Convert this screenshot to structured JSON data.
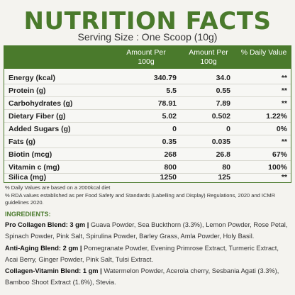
{
  "title": "NUTRITION FACTS",
  "serving": "Serving Size : One Scoop (10g)",
  "table": {
    "headers": [
      "Amount Per 100g",
      "Amount Per 100g",
      "% Daily Value"
    ],
    "rows": [
      {
        "label": "Energy (kcal)",
        "per100g": "340.79",
        "perScoop": "34.0",
        "dv": "**"
      },
      {
        "label": "Protein (g)",
        "per100g": "5.5",
        "perScoop": "0.55",
        "dv": "**"
      },
      {
        "label": "Carbohydrates (g)",
        "per100g": "78.91",
        "perScoop": "7.89",
        "dv": "**"
      },
      {
        "label": "Dietary Fiber (g)",
        "per100g": "5.02",
        "perScoop": "0.502",
        "dv": "1.22%"
      },
      {
        "label": "Added Sugars (g)",
        "per100g": "0",
        "perScoop": "0",
        "dv": "0%"
      },
      {
        "label": "Fats (g)",
        "per100g": "0.35",
        "perScoop": "0.035",
        "dv": "**"
      },
      {
        "label": "Biotin (mcg)",
        "per100g": "268",
        "perScoop": "26.8",
        "dv": "67%"
      },
      {
        "label": "Vitamin c (mg)",
        "per100g": "800",
        "perScoop": "80",
        "dv": "100%"
      },
      {
        "label": "Silica (mg)",
        "per100g": "1250",
        "perScoop": "125",
        "dv": "**"
      }
    ]
  },
  "notes": {
    "line1": "% Daily Values are based on a 2000kcal diet",
    "line2": "% RDA values established as per Food Safety and Standards (Labelling and Display) Regulations, 2020 and ICMR guidelines 2020."
  },
  "ingredients": {
    "heading": "INGREDIENTS:",
    "blends": [
      {
        "name": "Pro Collagen Blend: 3 gm |",
        "text": " Guava Powder, Sea Buckthorn (3.3%), Lemon Powder, Rose Petal, Spinach Powder, Pink Salt, Spirulina Powder, Barley Grass, Amla Powder, Holy Basil."
      },
      {
        "name": "Anti-Aging Blend: 2 gm |",
        "text": " Pomegranate Powder, Evening Primrose Extract, Turmeric Extract, Acai Berry, Ginger Powder, Pink Salt, Tulsi Extract."
      },
      {
        "name": "Collagen-Vitamin Blend: 1 gm |",
        "text": " Watermelon Powder, Acerola cherry, Sesbania Agati (3.3%), Bamboo Shoot Extract (1.6%), Stevia."
      }
    ]
  },
  "colors": {
    "accent": "#4a7a2c",
    "background": "#f4f3ef"
  }
}
